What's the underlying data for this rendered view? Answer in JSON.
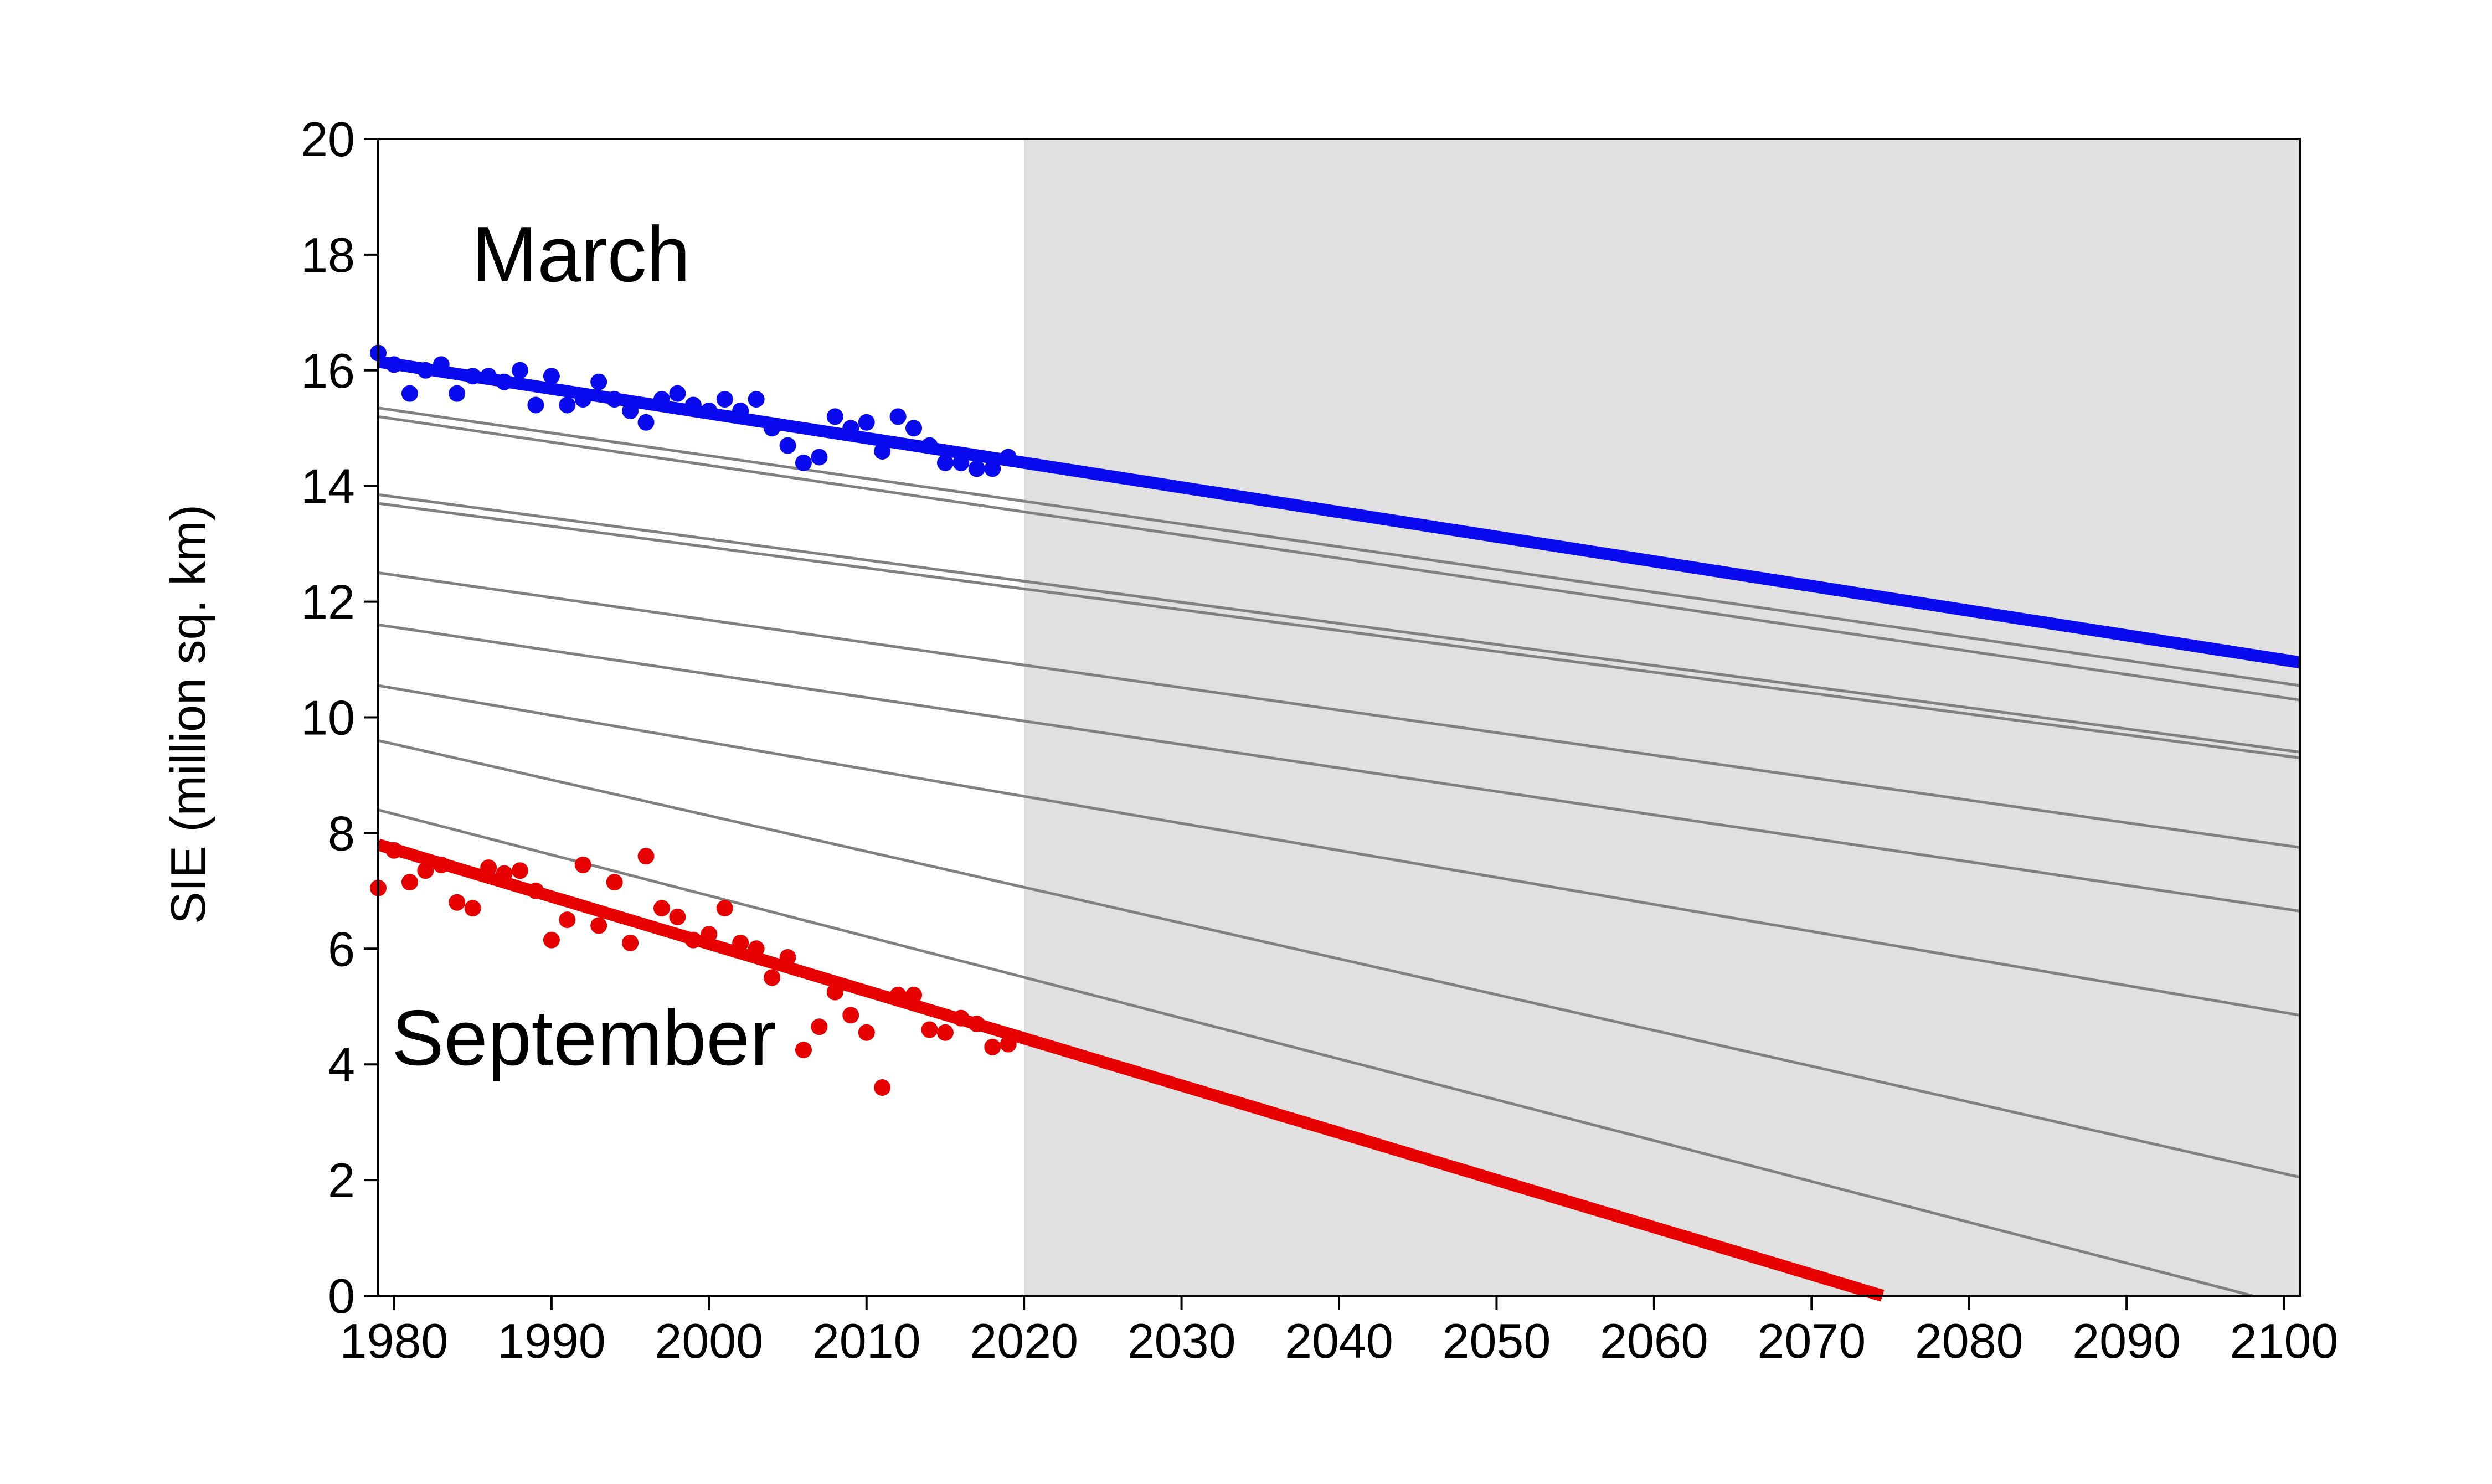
{
  "chart_data": {
    "type": "scatter",
    "title": "",
    "xlabel": "",
    "ylabel": "SIE (million sq. km)",
    "xlim": [
      1979,
      2101
    ],
    "ylim": [
      0,
      20
    ],
    "xticks": [
      1980,
      1990,
      2000,
      2010,
      2020,
      2030,
      2040,
      2050,
      2060,
      2070,
      2080,
      2090,
      2100
    ],
    "yticks": [
      0,
      2,
      4,
      6,
      8,
      10,
      12,
      14,
      16,
      18,
      20
    ],
    "grid": false,
    "legend": "none",
    "projection_region": {
      "x_start": 2020,
      "x_end": 2101,
      "color": "#e0e0e0"
    },
    "series_labels": {
      "march": "March",
      "september": "September"
    },
    "series": [
      {
        "name": "March",
        "color": "#0a0aee",
        "x": [
          1979,
          1980,
          1981,
          1982,
          1983,
          1984,
          1985,
          1986,
          1987,
          1988,
          1989,
          1990,
          1991,
          1992,
          1993,
          1994,
          1995,
          1996,
          1997,
          1998,
          1999,
          2000,
          2001,
          2002,
          2003,
          2004,
          2005,
          2006,
          2007,
          2008,
          2009,
          2010,
          2011,
          2012,
          2013,
          2014,
          2015,
          2016,
          2017,
          2018,
          2019
        ],
        "y": [
          16.3,
          16.1,
          15.6,
          16.0,
          16.1,
          15.6,
          15.9,
          15.9,
          15.8,
          16.0,
          15.4,
          15.9,
          15.4,
          15.5,
          15.8,
          15.5,
          15.3,
          15.1,
          15.5,
          15.6,
          15.4,
          15.3,
          15.5,
          15.3,
          15.5,
          15.0,
          14.7,
          14.4,
          14.5,
          15.2,
          15.0,
          15.1,
          14.6,
          15.2,
          15.0,
          14.7,
          14.4,
          14.4,
          14.3,
          14.3,
          14.5
        ],
        "trend": {
          "x": [
            1979,
            2101
          ],
          "y": [
            16.15,
            10.95
          ]
        }
      },
      {
        "name": "September",
        "color": "#e60000",
        "x": [
          1979,
          1980,
          1981,
          1982,
          1983,
          1984,
          1985,
          1986,
          1987,
          1988,
          1989,
          1990,
          1991,
          1992,
          1993,
          1994,
          1995,
          1996,
          1997,
          1998,
          1999,
          2000,
          2001,
          2002,
          2003,
          2004,
          2005,
          2006,
          2007,
          2008,
          2009,
          2010,
          2011,
          2012,
          2013,
          2014,
          2015,
          2016,
          2017,
          2018,
          2019
        ],
        "y": [
          7.05,
          7.7,
          7.15,
          7.35,
          7.45,
          6.8,
          6.7,
          7.4,
          7.3,
          7.35,
          7.0,
          6.15,
          6.5,
          7.45,
          6.4,
          7.15,
          6.1,
          7.6,
          6.7,
          6.55,
          6.15,
          6.25,
          6.7,
          6.1,
          6.0,
          5.5,
          5.85,
          4.25,
          4.65,
          5.25,
          4.85,
          4.55,
          3.6,
          5.2,
          5.2,
          4.6,
          4.55,
          4.8,
          4.7,
          4.3,
          4.35
        ],
        "trend": {
          "x": [
            1979,
            2074.5
          ],
          "y": [
            7.8,
            0.0
          ]
        }
      }
    ],
    "projection_lines": [
      {
        "x": [
          1979,
          2101
        ],
        "y": [
          15.35,
          10.55
        ]
      },
      {
        "x": [
          1979,
          2101
        ],
        "y": [
          15.2,
          10.3
        ]
      },
      {
        "x": [
          1979,
          2101
        ],
        "y": [
          13.85,
          9.4
        ]
      },
      {
        "x": [
          1979,
          2101
        ],
        "y": [
          13.7,
          9.3
        ]
      },
      {
        "x": [
          1979,
          2101
        ],
        "y": [
          12.5,
          7.75
        ]
      },
      {
        "x": [
          1979,
          2101
        ],
        "y": [
          11.6,
          6.65
        ]
      },
      {
        "x": [
          1979,
          2101
        ],
        "y": [
          10.55,
          4.85
        ]
      },
      {
        "x": [
          1979,
          2101
        ],
        "y": [
          9.6,
          2.05
        ]
      },
      {
        "x": [
          1979,
          2098
        ],
        "y": [
          8.4,
          0.0
        ]
      }
    ],
    "colors": {
      "march": "#0a0aee",
      "september": "#e60000",
      "projection": "#808080",
      "shade": "#e0e0e0",
      "axis": "#000000"
    }
  }
}
